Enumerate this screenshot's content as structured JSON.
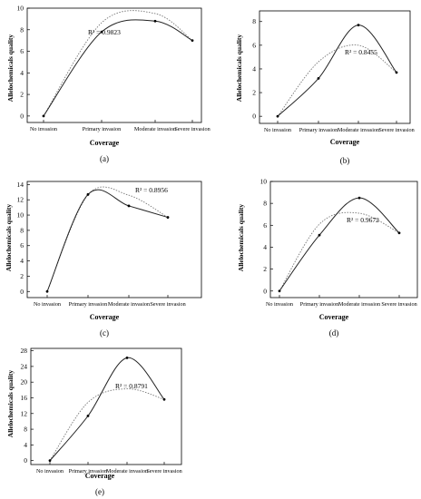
{
  "chart_data": [
    {
      "type": "line",
      "panel_label": "(a)",
      "xlabel": "Coverage",
      "ylabel": "Allelochemicals quality",
      "categories": [
        "No invasion",
        "Primary invasion",
        "Moderate invasion",
        "Severe invasion"
      ],
      "values": [
        0,
        7.8,
        8.8,
        7.0
      ],
      "fit_peak": 9.5,
      "yticks": [
        0,
        2,
        4,
        6,
        8,
        10
      ],
      "ylim": [
        -0.6,
        10
      ],
      "r2_label": "R² = 0.9823"
    },
    {
      "type": "line",
      "panel_label": "(b)",
      "xlabel": "Coverage",
      "ylabel": "Allelochemicals quality",
      "categories": [
        "No invasion",
        "Primary invasion",
        "Moderate invasion",
        "Severe invasion"
      ],
      "values": [
        0,
        3.2,
        7.7,
        3.7
      ],
      "fit_peak": 6.0,
      "yticks": [
        0,
        2,
        4,
        6,
        8
      ],
      "ylim": [
        -0.6,
        8.9
      ],
      "r2_label": "R² = 0.8455"
    },
    {
      "type": "line",
      "panel_label": "(c)",
      "xlabel": "Coverage",
      "ylabel": "Allelochemicals quality",
      "categories": [
        "No invasion",
        "Primary invasion",
        "Moderate invasion",
        "Severe invasion"
      ],
      "values": [
        0,
        12.7,
        11.2,
        9.7
      ],
      "fit_peak": 12.6,
      "yticks": [
        0,
        2,
        4,
        6,
        8,
        10,
        12,
        14
      ],
      "ylim": [
        -0.8,
        14.4
      ],
      "r2_label": "R² = 0.8956"
    },
    {
      "type": "line",
      "panel_label": "(d)",
      "xlabel": "Coverage",
      "ylabel": "Allelochemicals quality",
      "categories": [
        "No invasion",
        "Primary invasion",
        "Moderate invasion",
        "Severe invasion"
      ],
      "values": [
        0,
        5.1,
        8.5,
        5.3
      ],
      "fit_peak": 7.1,
      "yticks": [
        0,
        2,
        4,
        6,
        8,
        10
      ],
      "ylim": [
        -0.6,
        10
      ],
      "r2_label": "R² = 0.9672"
    },
    {
      "type": "line",
      "panel_label": "(e)",
      "xlabel": "Coverage",
      "ylabel": "Allelochemicals quality",
      "categories": [
        "No invasion",
        "Primary invasion",
        "Moderate invasion",
        "Severe invasion"
      ],
      "values": [
        0,
        11.4,
        26.2,
        15.6
      ],
      "fit_peak": 18.3,
      "yticks": [
        0,
        4,
        8,
        12,
        16,
        20,
        24,
        28
      ],
      "ylim": [
        -1.0,
        28.6
      ],
      "r2_label": "R² = 0.8791"
    }
  ]
}
